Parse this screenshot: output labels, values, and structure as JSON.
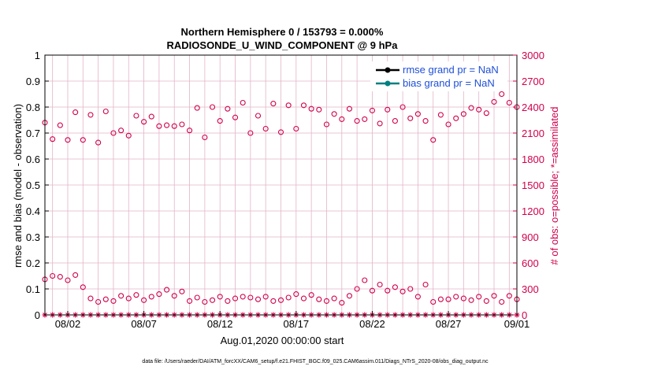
{
  "chart_data": {
    "type": "scatter",
    "title": "Northern Hemisphere 0 / 153793 = 0.000%",
    "subtitle": "RADIOSONDE_U_WIND_COMPONENT @ 9 hPa",
    "xlabel": "Aug.01,2020 00:00:00 start",
    "ylabel_left": "rmse and bias (model - observation)",
    "ylabel_right": "# of obs: o=possible; *=assimilated",
    "footer": "data file: /Users/raeder/DAI/ATM_forcXX/CAM6_setup/f.e21.FHIST_BGC.f09_025.CAM6assim.011/Diags_NTrS_2020-08/obs_diag_output.nc",
    "x_range": [
      0.5,
      31.5
    ],
    "x_ticks": [
      {
        "day": 2,
        "label": "08/02"
      },
      {
        "day": 7,
        "label": "08/07"
      },
      {
        "day": 12,
        "label": "08/12"
      },
      {
        "day": 17,
        "label": "08/17"
      },
      {
        "day": 22,
        "label": "08/22"
      },
      {
        "day": 27,
        "label": "08/27"
      },
      {
        "day": 32,
        "label": "09/01"
      }
    ],
    "y_left_range": [
      0,
      1
    ],
    "y_left_ticks": [
      "0",
      "0.1",
      "0.2",
      "0.3",
      "0.4",
      "0.5",
      "0.6",
      "0.7",
      "0.8",
      "0.9",
      "1"
    ],
    "y_right_range": [
      0,
      3000
    ],
    "y_right_ticks": [
      "0",
      "300",
      "600",
      "900",
      "1200",
      "1500",
      "1800",
      "2100",
      "2400",
      "2700",
      "3000"
    ],
    "legend": [
      "rmse grand pr = NaN",
      "bias grand pr = NaN"
    ],
    "legend_placement": "top-right",
    "colors": {
      "rmse": "#000000",
      "bias": "#008080",
      "obs": "#d1004b",
      "legend_text": "#1f4fd8",
      "grid": "#e3b4c8"
    },
    "series": [
      {
        "name": "possible",
        "marker": "o",
        "x": [
          0.5,
          1.0,
          1.5,
          2.0,
          2.5,
          3.0,
          3.5,
          4.0,
          4.5,
          5.0,
          5.5,
          6.0,
          6.5,
          7.0,
          7.5,
          8.0,
          8.5,
          9.0,
          9.5,
          10.0,
          10.5,
          11.0,
          11.5,
          12.0,
          12.5,
          13.0,
          13.5,
          14.0,
          14.5,
          15.0,
          15.5,
          16.0,
          16.5,
          17.0,
          17.5,
          18.0,
          18.5,
          19.0,
          19.5,
          20.0,
          20.5,
          21.0,
          21.5,
          22.0,
          22.5,
          23.0,
          23.5,
          24.0,
          24.5,
          25.0,
          25.5,
          26.0,
          26.5,
          27.0,
          27.5,
          28.0,
          28.5,
          29.0,
          29.5,
          30.0,
          30.5,
          31.0,
          31.5
        ],
        "values": [
          2220,
          2030,
          2190,
          2020,
          2340,
          2020,
          2310,
          1990,
          2350,
          2100,
          2130,
          2070,
          2300,
          2230,
          2290,
          2180,
          2190,
          2180,
          2200,
          2130,
          2390,
          2050,
          2400,
          2240,
          2380,
          2280,
          2450,
          2100,
          2300,
          2150,
          2440,
          2110,
          2420,
          2150,
          2420,
          2380,
          2370,
          2200,
          2320,
          2260,
          2380,
          2240,
          2260,
          2360,
          2210,
          2370,
          2240,
          2400,
          2270,
          2320,
          2240,
          2020,
          2310,
          2200,
          2270,
          2320,
          2390,
          2370,
          2330,
          2460,
          2550,
          2450,
          2400
        ]
      },
      {
        "name": "possible",
        "marker": "o",
        "x": [
          0.5,
          1.0,
          1.5,
          2.0,
          2.5,
          3.0,
          3.5,
          4.0,
          4.5,
          5.0,
          5.5,
          6.0,
          6.5,
          7.0,
          7.5,
          8.0,
          8.5,
          9.0,
          9.5,
          10.0,
          10.5,
          11.0,
          11.5,
          12.0,
          12.5,
          13.0,
          13.5,
          14.0,
          14.5,
          15.0,
          15.5,
          16.0,
          16.5,
          17.0,
          17.5,
          18.0,
          18.5,
          19.0,
          19.5,
          20.0,
          20.5,
          21.0,
          21.5,
          22.0,
          22.5,
          23.0,
          23.5,
          24.0,
          24.5,
          25.0,
          25.5,
          26.0,
          26.5,
          27.0,
          27.5,
          28.0,
          28.5,
          29.0,
          29.5,
          30.0,
          30.5,
          31.0,
          31.5
        ],
        "values": [
          410,
          450,
          440,
          400,
          460,
          320,
          190,
          150,
          180,
          160,
          220,
          190,
          230,
          170,
          210,
          240,
          290,
          220,
          270,
          160,
          200,
          150,
          170,
          210,
          160,
          190,
          210,
          200,
          180,
          210,
          160,
          170,
          200,
          240,
          190,
          230,
          180,
          160,
          190,
          140,
          220,
          300,
          400,
          280,
          350,
          280,
          320,
          270,
          300,
          210,
          350,
          150,
          180,
          180,
          210,
          190,
          170,
          210,
          160,
          220,
          150,
          220,
          180
        ]
      },
      {
        "name": "assimilated",
        "marker": "*",
        "x": [
          0.5,
          1.0,
          1.5,
          2.0,
          2.5,
          3.0,
          3.5,
          4.0,
          4.5,
          5.0,
          5.5,
          6.0,
          6.5,
          7.0,
          7.5,
          8.0,
          8.5,
          9.0,
          9.5,
          10.0,
          10.5,
          11.0,
          11.5,
          12.0,
          12.5,
          13.0,
          13.5,
          14.0,
          14.5,
          15.0,
          15.5,
          16.0,
          16.5,
          17.0,
          17.5,
          18.0,
          18.5,
          19.0,
          19.5,
          20.0,
          20.5,
          21.0,
          21.5,
          22.0,
          22.5,
          23.0,
          23.5,
          24.0,
          24.5,
          25.0,
          25.5,
          26.0,
          26.5,
          27.0,
          27.5,
          28.0,
          28.5,
          29.0,
          29.5,
          30.0,
          30.5,
          31.0,
          31.5
        ],
        "values": [
          0,
          0,
          0,
          0,
          0,
          0,
          0,
          0,
          0,
          0,
          0,
          0,
          0,
          0,
          0,
          0,
          0,
          0,
          0,
          0,
          0,
          0,
          0,
          0,
          0,
          0,
          0,
          0,
          0,
          0,
          0,
          0,
          0,
          0,
          0,
          0,
          0,
          0,
          0,
          0,
          0,
          0,
          0,
          0,
          0,
          0,
          0,
          0,
          0,
          0,
          0,
          0,
          0,
          0,
          0,
          0,
          0,
          0,
          0,
          0,
          0,
          0,
          0
        ]
      }
    ]
  }
}
